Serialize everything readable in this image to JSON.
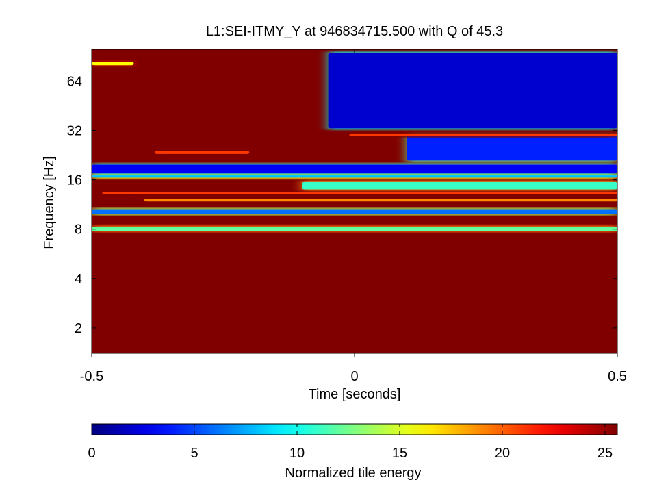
{
  "chart_data": {
    "type": "heatmap",
    "title": "L1:SEI-ITMY_Y at 946834715.500 with Q of 45.3",
    "xlabel": "Time [seconds]",
    "ylabel": "Frequency [Hz]",
    "x_ticks": [
      -0.5,
      0,
      0.5
    ],
    "x_tick_labels": [
      "-0.5",
      "0",
      "0.5"
    ],
    "xlim": [
      -0.5,
      0.5
    ],
    "y_scale": "log2",
    "y_ticks": [
      2,
      4,
      8,
      16,
      32,
      64
    ],
    "y_tick_labels": [
      "2",
      "4",
      "8",
      "16",
      "32",
      "64"
    ],
    "ylim": [
      1.4,
      100
    ],
    "colorbar": {
      "label": "Normalized tile energy",
      "orientation": "horizontal",
      "placement": "below",
      "range": [
        0,
        25.6
      ],
      "ticks": [
        0,
        5,
        10,
        15,
        20,
        25
      ],
      "tick_labels": [
        "0",
        "5",
        "10",
        "15",
        "20",
        "25"
      ],
      "colormap": "jet"
    },
    "background_energy": 25.6,
    "grid": false,
    "features": [
      {
        "kind": "band",
        "f": 8.0,
        "f_low": 7.8,
        "f_high": 8.3,
        "t_start": -0.5,
        "t_end": 0.5,
        "energy": 12
      },
      {
        "kind": "band",
        "f": 10.2,
        "f_low": 9.9,
        "f_high": 10.6,
        "t_start": -0.5,
        "t_end": 0.5,
        "energy": 6
      },
      {
        "kind": "band",
        "f": 12.0,
        "f_low": 11.8,
        "f_high": 12.3,
        "t_start": -0.4,
        "t_end": 0.5,
        "energy": 19
      },
      {
        "kind": "band",
        "f": 13.3,
        "f_low": 13.1,
        "f_high": 13.5,
        "t_start": -0.48,
        "t_end": 0.5,
        "energy": 21
      },
      {
        "kind": "band",
        "f": 14.8,
        "f_low": 14.0,
        "f_high": 15.5,
        "t_start": -0.1,
        "t_end": 0.5,
        "energy": 11
      },
      {
        "kind": "band",
        "f": 16.8,
        "f_low": 16.5,
        "f_high": 17.1,
        "t_start": -0.5,
        "t_end": 0.5,
        "energy": 8
      },
      {
        "kind": "band",
        "f": 18.5,
        "f_low": 17.5,
        "f_high": 19.8,
        "t_start": -0.5,
        "t_end": 0.5,
        "energy": 3
      },
      {
        "kind": "band",
        "f": 23.5,
        "f_low": 23.0,
        "f_high": 24.0,
        "t_start": -0.38,
        "t_end": -0.2,
        "energy": 21
      },
      {
        "kind": "band",
        "f": 25.0,
        "f_low": 21.0,
        "f_high": 30.0,
        "t_start": 0.1,
        "t_end": 0.5,
        "energy": 4
      },
      {
        "kind": "band",
        "f": 30.0,
        "f_low": 29.5,
        "f_high": 30.5,
        "t_start": -0.01,
        "t_end": 0.5,
        "energy": 21
      },
      {
        "kind": "region",
        "f_low": 33.0,
        "f_high": 95.0,
        "t_start": -0.05,
        "t_end": 0.5,
        "energy": 2
      },
      {
        "kind": "band",
        "f": 82.0,
        "f_low": 80.0,
        "f_high": 84.0,
        "t_start": -0.5,
        "t_end": -0.42,
        "energy": 16
      }
    ]
  }
}
